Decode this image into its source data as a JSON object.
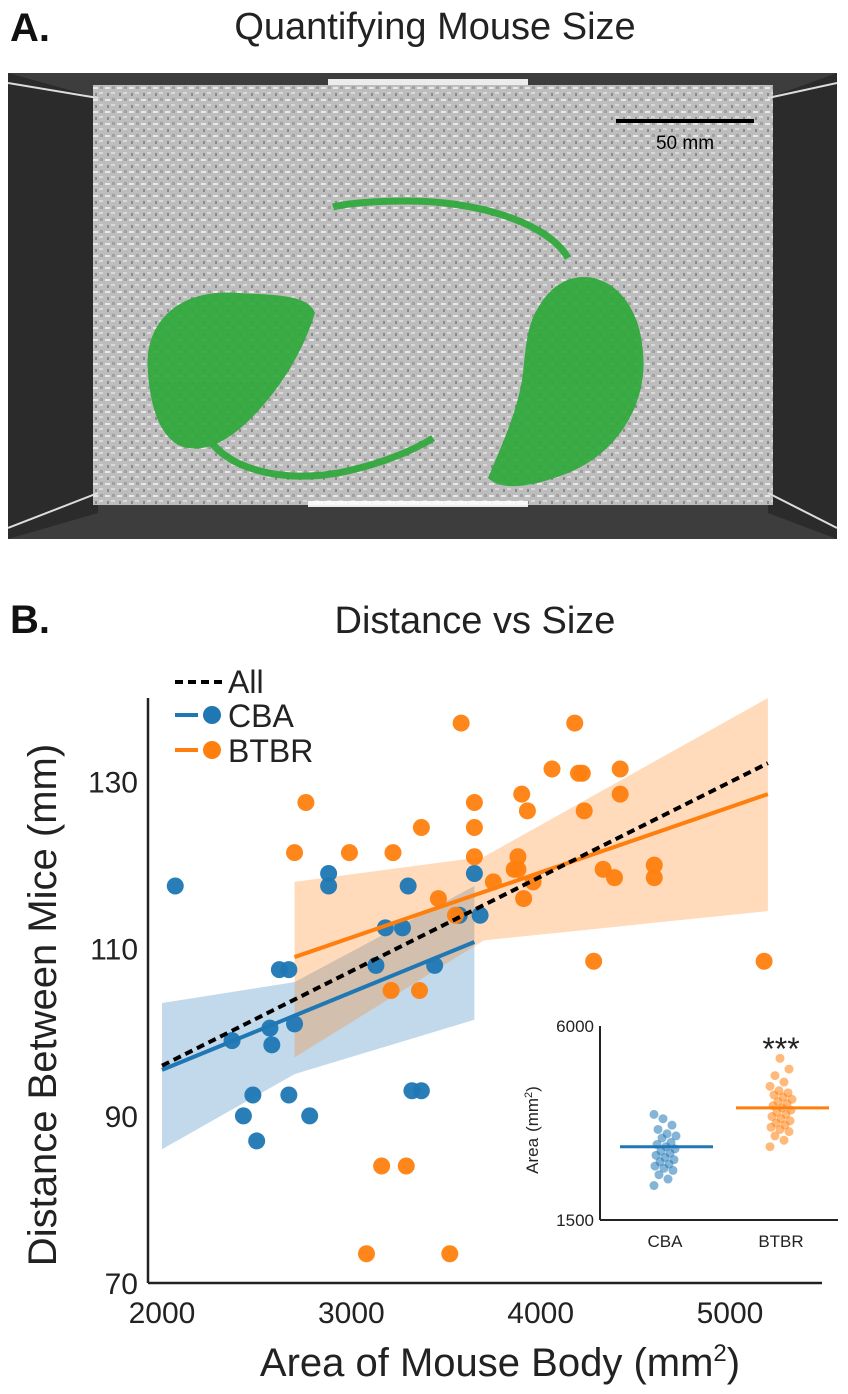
{
  "panel_a": {
    "letter": "A.",
    "title": "Quantifying Mouse Size",
    "scale_bar_label": "50 mm"
  },
  "panel_b": {
    "letter": "B.",
    "title": "Distance vs Size"
  },
  "colors": {
    "cba": "#1f77b4",
    "btbr": "#ff7f0e",
    "all": "#000000"
  },
  "chart_data": [
    {
      "type": "scatter",
      "title": "Distance vs Size",
      "xlabel": "Area of Mouse Body (mm",
      "xlabel_sup": "2",
      "xlabel_close": ")",
      "ylabel": "Distance Between Mice (mm)",
      "xlim": [
        2000,
        5500
      ],
      "ylim": [
        70,
        140
      ],
      "xticks": [
        2000,
        3000,
        4000,
        5000
      ],
      "yticks": [
        70,
        90,
        110,
        130
      ],
      "legend": {
        "placement": "top-left",
        "entries": [
          "All",
          "CBA",
          "BTBR"
        ]
      },
      "series": [
        {
          "name": "CBA",
          "points": [
            [
              2070,
              117.5
            ],
            [
              2370,
              99
            ],
            [
              2430,
              90
            ],
            [
              2480,
              92.5
            ],
            [
              2500,
              87
            ],
            [
              2570,
              100.5
            ],
            [
              2580,
              98.5
            ],
            [
              2620,
              107.5
            ],
            [
              2670,
              107.5
            ],
            [
              2670,
              92.5
            ],
            [
              2700,
              101
            ],
            [
              2780,
              90
            ],
            [
              2880,
              119
            ],
            [
              2880,
              117.5
            ],
            [
              3130,
              108
            ],
            [
              3180,
              112.5
            ],
            [
              3270,
              112.5
            ],
            [
              3300,
              117.5
            ],
            [
              3320,
              93
            ],
            [
              3370,
              93
            ],
            [
              3440,
              108
            ],
            [
              3570,
              114
            ],
            [
              3650,
              119
            ],
            [
              3680,
              114
            ]
          ],
          "fit": {
            "x": [
              2000,
              3650
            ],
            "y": [
              95.5,
              110.8
            ]
          },
          "ci": {
            "x": [
              2000,
              2700,
              3650
            ],
            "upper": [
              103.5,
              106,
              117.5
            ],
            "lower": [
              86,
              95,
              101.5
            ]
          }
        },
        {
          "name": "BTBR",
          "points": [
            [
              2700,
              121.5
            ],
            [
              2760,
              127.5
            ],
            [
              2990,
              121.5
            ],
            [
              3080,
              73.5
            ],
            [
              3160,
              84
            ],
            [
              3210,
              105
            ],
            [
              3220,
              121.5
            ],
            [
              3290,
              84
            ],
            [
              3360,
              105
            ],
            [
              3370,
              124.5
            ],
            [
              3460,
              116
            ],
            [
              3550,
              114
            ],
            [
              3580,
              137
            ],
            [
              3650,
              127.5
            ],
            [
              3650,
              124.5
            ],
            [
              3650,
              121
            ],
            [
              3750,
              118
            ],
            [
              3860,
              119.5
            ],
            [
              3880,
              121
            ],
            [
              3880,
              119.5
            ],
            [
              3900,
              128.5
            ],
            [
              3910,
              116
            ],
            [
              3930,
              126.5
            ],
            [
              3960,
              118
            ],
            [
              4060,
              131.5
            ],
            [
              4180,
              137
            ],
            [
              4200,
              131
            ],
            [
              4220,
              131
            ],
            [
              4230,
              126.5
            ],
            [
              4280,
              108.5
            ],
            [
              4330,
              119.5
            ],
            [
              4390,
              118.5
            ],
            [
              4420,
              131.5
            ],
            [
              4420,
              128.5
            ],
            [
              4600,
              120
            ],
            [
              4600,
              118.5
            ],
            [
              3520,
              73.5
            ],
            [
              5180,
              108.5
            ]
          ],
          "fit": {
            "x": [
              2700,
              5200
            ],
            "y": [
              109,
              128.5
            ]
          },
          "ci": {
            "x": [
              2700,
              3700,
              5200
            ],
            "upper": [
              118,
              121,
              140
            ],
            "lower": [
              97,
              111,
              114.5
            ]
          }
        },
        {
          "name": "All",
          "style": "dashed",
          "fit": {
            "x": [
              2000,
              5200
            ],
            "y": [
              96,
              132.2
            ]
          }
        }
      ]
    },
    {
      "type": "scatter",
      "title": "",
      "ylabel": "Area",
      "ylabel_unit": "(mm",
      "ylabel_sup": "2",
      "ylabel_close": ")",
      "ylim": [
        1500,
        6000
      ],
      "yticks": [
        1500,
        6000
      ],
      "categories": [
        "CBA",
        "BTBR"
      ],
      "annotation": "***",
      "series": [
        {
          "name": "CBA",
          "mean": 3200,
          "values": [
            2300,
            2450,
            2550,
            2650,
            2700,
            2750,
            2800,
            2850,
            2900,
            2950,
            3000,
            3050,
            3100,
            3150,
            3200,
            3250,
            3300,
            3400,
            3450,
            3500,
            3600,
            3700,
            3850,
            3950
          ]
        },
        {
          "name": "BTBR",
          "mean": 4100,
          "values": [
            3200,
            3350,
            3450,
            3550,
            3600,
            3650,
            3700,
            3750,
            3800,
            3850,
            3900,
            3950,
            4000,
            4050,
            4100,
            4150,
            4200,
            4250,
            4300,
            4350,
            4400,
            4450,
            4500,
            4600,
            4700,
            4850,
            5000,
            5250
          ]
        }
      ]
    }
  ]
}
